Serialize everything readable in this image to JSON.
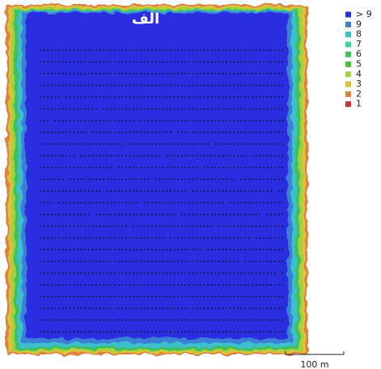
{
  "map_label": "الف",
  "legend": [
    {
      "label": "> 9",
      "color": "#2b2ee0"
    },
    {
      "label": "9",
      "color": "#3b7fd6"
    },
    {
      "label": "8",
      "color": "#3cc0cc"
    },
    {
      "label": "7",
      "color": "#3fd69c"
    },
    {
      "label": "6",
      "color": "#3fbf5a"
    },
    {
      "label": "5",
      "color": "#52c23c"
    },
    {
      "label": "4",
      "color": "#9fd23e"
    },
    {
      "label": "3",
      "color": "#dcc33e"
    },
    {
      "label": "2",
      "color": "#de8240"
    },
    {
      "label": "1",
      "color": "#cf3232"
    }
  ],
  "scale_bar": "100 m"
}
